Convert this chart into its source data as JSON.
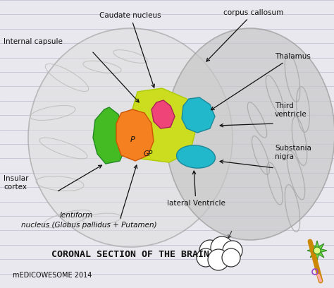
{
  "bg_color": "#d4d4dc",
  "paper_color": "#e8e8ee",
  "line_color_paper": "#b0b0c8",
  "title": "CORONAL SECTION OF THE BRAIN",
  "subtitle": "mEDICOWESOME 2014",
  "n_lines": 20,
  "colors": {
    "green": "#44bb22",
    "orange": "#f58020",
    "yellow": "#ccdd20",
    "pink": "#ee4477",
    "teal": "#22b8cc",
    "brain_fill": "#cccccc",
    "brain_edge": "#888888",
    "gyri": "#aaaaaa",
    "text": "#111111",
    "arrow": "#111111"
  },
  "labels": {
    "caudate": "Caudate nucleus",
    "corpus": "corpus callosum",
    "internal": "Internal capsule",
    "thalamus": "Thalamus",
    "third_v": "Third\nventricle",
    "substania": "Substania\nnigra",
    "insular": "Insular\ncortex",
    "lateral_v": "lateral Ventricle",
    "lentiform1": "lentiform",
    "lentiform2": "nucleus (Globus pallidus + Putamen)"
  }
}
